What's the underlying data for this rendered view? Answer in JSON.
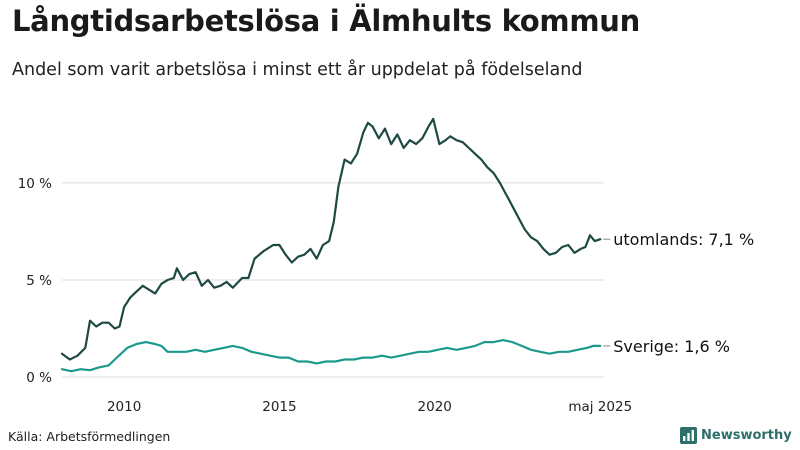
{
  "header": {
    "title": "Långtidsarbetslösa i Älmhults kommun",
    "subtitle": "Andel som varit arbetslösa i minst ett år uppdelat på födelseland"
  },
  "footer": {
    "source": "Källa: Arbetsförmedlingen",
    "brand": "Newsworthy",
    "brand_icon": "bar-chart-logo-icon"
  },
  "colors": {
    "abroad": "#1f4a44",
    "sweden": "#1b9a8c",
    "grid": "#dcdcdc",
    "text": "#222222",
    "brand": "#2f6f6a"
  },
  "chart_data": {
    "type": "line",
    "x_ticks": [
      {
        "label": "2010",
        "value": 2010.0
      },
      {
        "label": "2015",
        "value": 2015.0
      },
      {
        "label": "2020",
        "value": 2020.0
      },
      {
        "label": "maj 2025",
        "value": 2025.33
      }
    ],
    "y_ticks": [
      {
        "label": "0 %",
        "value": 0
      },
      {
        "label": "5 %",
        "value": 5
      },
      {
        "label": "10 %",
        "value": 10
      }
    ],
    "xlim": [
      2008.0,
      2025.45
    ],
    "ylim": [
      0,
      13.5
    ],
    "grid": true,
    "series": [
      {
        "key": "abroad",
        "name": "utomlands",
        "end_label": "utomlands: 7,1 %",
        "points": [
          [
            2008.0,
            1.2
          ],
          [
            2008.25,
            0.9
          ],
          [
            2008.5,
            1.1
          ],
          [
            2008.75,
            1.5
          ],
          [
            2008.9,
            2.9
          ],
          [
            2009.1,
            2.6
          ],
          [
            2009.3,
            2.8
          ],
          [
            2009.5,
            2.8
          ],
          [
            2009.7,
            2.5
          ],
          [
            2009.85,
            2.6
          ],
          [
            2010.0,
            3.6
          ],
          [
            2010.2,
            4.1
          ],
          [
            2010.4,
            4.4
          ],
          [
            2010.6,
            4.7
          ],
          [
            2010.8,
            4.5
          ],
          [
            2011.0,
            4.3
          ],
          [
            2011.2,
            4.8
          ],
          [
            2011.4,
            5.0
          ],
          [
            2011.6,
            5.1
          ],
          [
            2011.7,
            5.6
          ],
          [
            2011.9,
            5.0
          ],
          [
            2012.1,
            5.3
          ],
          [
            2012.3,
            5.4
          ],
          [
            2012.5,
            4.7
          ],
          [
            2012.7,
            5.0
          ],
          [
            2012.9,
            4.6
          ],
          [
            2013.1,
            4.7
          ],
          [
            2013.3,
            4.9
          ],
          [
            2013.5,
            4.6
          ],
          [
            2013.8,
            5.1
          ],
          [
            2014.0,
            5.1
          ],
          [
            2014.2,
            6.1
          ],
          [
            2014.5,
            6.5
          ],
          [
            2014.8,
            6.8
          ],
          [
            2015.0,
            6.8
          ],
          [
            2015.2,
            6.3
          ],
          [
            2015.4,
            5.9
          ],
          [
            2015.6,
            6.2
          ],
          [
            2015.8,
            6.3
          ],
          [
            2016.0,
            6.6
          ],
          [
            2016.2,
            6.1
          ],
          [
            2016.4,
            6.8
          ],
          [
            2016.6,
            7.0
          ],
          [
            2016.75,
            8.0
          ],
          [
            2016.9,
            9.8
          ],
          [
            2017.1,
            11.2
          ],
          [
            2017.3,
            11.0
          ],
          [
            2017.5,
            11.5
          ],
          [
            2017.7,
            12.6
          ],
          [
            2017.85,
            13.1
          ],
          [
            2018.0,
            12.9
          ],
          [
            2018.2,
            12.3
          ],
          [
            2018.4,
            12.8
          ],
          [
            2018.6,
            12.0
          ],
          [
            2018.8,
            12.5
          ],
          [
            2019.0,
            11.8
          ],
          [
            2019.2,
            12.2
          ],
          [
            2019.4,
            12.0
          ],
          [
            2019.6,
            12.3
          ],
          [
            2019.8,
            12.9
          ],
          [
            2019.95,
            13.3
          ],
          [
            2020.15,
            12.0
          ],
          [
            2020.35,
            12.2
          ],
          [
            2020.5,
            12.4
          ],
          [
            2020.7,
            12.2
          ],
          [
            2020.9,
            12.1
          ],
          [
            2021.1,
            11.8
          ],
          [
            2021.3,
            11.5
          ],
          [
            2021.5,
            11.2
          ],
          [
            2021.7,
            10.8
          ],
          [
            2021.9,
            10.5
          ],
          [
            2022.1,
            10.0
          ],
          [
            2022.3,
            9.4
          ],
          [
            2022.5,
            8.8
          ],
          [
            2022.7,
            8.2
          ],
          [
            2022.9,
            7.6
          ],
          [
            2023.1,
            7.2
          ],
          [
            2023.3,
            7.0
          ],
          [
            2023.5,
            6.6
          ],
          [
            2023.7,
            6.3
          ],
          [
            2023.9,
            6.4
          ],
          [
            2024.1,
            6.7
          ],
          [
            2024.3,
            6.8
          ],
          [
            2024.5,
            6.4
          ],
          [
            2024.7,
            6.6
          ],
          [
            2024.85,
            6.7
          ],
          [
            2025.0,
            7.3
          ],
          [
            2025.15,
            7.0
          ],
          [
            2025.33,
            7.1
          ]
        ]
      },
      {
        "key": "sweden",
        "name": "Sverige",
        "end_label": "Sverige: 1,6 %",
        "points": [
          [
            2008.0,
            0.4
          ],
          [
            2008.3,
            0.3
          ],
          [
            2008.6,
            0.4
          ],
          [
            2008.9,
            0.35
          ],
          [
            2009.2,
            0.5
          ],
          [
            2009.5,
            0.6
          ],
          [
            2009.7,
            0.9
          ],
          [
            2009.9,
            1.2
          ],
          [
            2010.1,
            1.5
          ],
          [
            2010.4,
            1.7
          ],
          [
            2010.7,
            1.8
          ],
          [
            2011.0,
            1.7
          ],
          [
            2011.2,
            1.6
          ],
          [
            2011.4,
            1.3
          ],
          [
            2011.7,
            1.3
          ],
          [
            2012.0,
            1.3
          ],
          [
            2012.3,
            1.4
          ],
          [
            2012.6,
            1.3
          ],
          [
            2012.9,
            1.4
          ],
          [
            2013.2,
            1.5
          ],
          [
            2013.5,
            1.6
          ],
          [
            2013.8,
            1.5
          ],
          [
            2014.1,
            1.3
          ],
          [
            2014.4,
            1.2
          ],
          [
            2014.7,
            1.1
          ],
          [
            2015.0,
            1.0
          ],
          [
            2015.3,
            1.0
          ],
          [
            2015.6,
            0.8
          ],
          [
            2015.9,
            0.8
          ],
          [
            2016.2,
            0.7
          ],
          [
            2016.5,
            0.8
          ],
          [
            2016.8,
            0.8
          ],
          [
            2017.1,
            0.9
          ],
          [
            2017.4,
            0.9
          ],
          [
            2017.7,
            1.0
          ],
          [
            2018.0,
            1.0
          ],
          [
            2018.3,
            1.1
          ],
          [
            2018.6,
            1.0
          ],
          [
            2018.9,
            1.1
          ],
          [
            2019.2,
            1.2
          ],
          [
            2019.5,
            1.3
          ],
          [
            2019.8,
            1.3
          ],
          [
            2020.1,
            1.4
          ],
          [
            2020.4,
            1.5
          ],
          [
            2020.7,
            1.4
          ],
          [
            2021.0,
            1.5
          ],
          [
            2021.3,
            1.6
          ],
          [
            2021.6,
            1.8
          ],
          [
            2021.9,
            1.8
          ],
          [
            2022.2,
            1.9
          ],
          [
            2022.5,
            1.8
          ],
          [
            2022.8,
            1.6
          ],
          [
            2023.1,
            1.4
          ],
          [
            2023.4,
            1.3
          ],
          [
            2023.7,
            1.2
          ],
          [
            2024.0,
            1.3
          ],
          [
            2024.3,
            1.3
          ],
          [
            2024.6,
            1.4
          ],
          [
            2024.9,
            1.5
          ],
          [
            2025.1,
            1.6
          ],
          [
            2025.33,
            1.6
          ]
        ]
      }
    ]
  }
}
